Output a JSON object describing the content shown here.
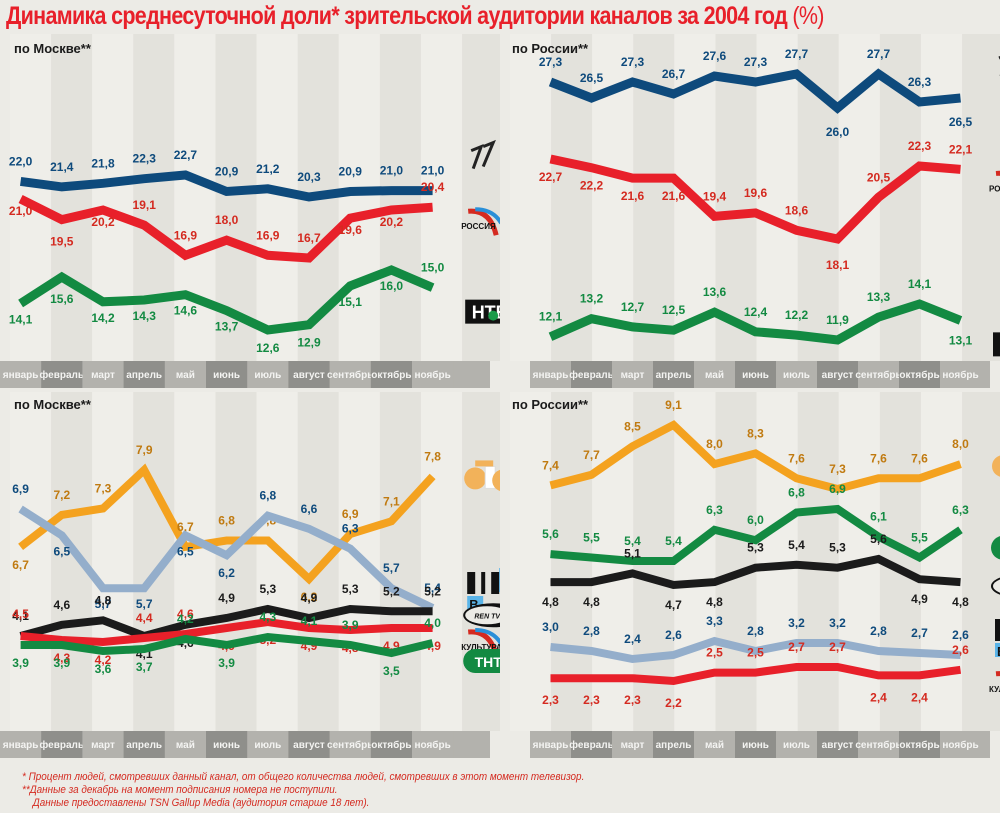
{
  "title": {
    "main": "Динамика среднесуточной доли* зрительской аудитории каналов за 2004 год",
    "unit": "(%)"
  },
  "colors": {
    "title": "#e8202a",
    "perviy": "#0e4a7c",
    "rossiya": "#e8202a",
    "ntv": "#138a42",
    "sts": "#f4a21f",
    "tvc": "#94aecb",
    "rentv": "#1b1b1b",
    "kultura": "#e8202a",
    "tnt": "#138a42",
    "axis_dark": "#8f8f8b",
    "axis_light": "#b3b2ad"
  },
  "months": [
    "январь",
    "февраль",
    "март",
    "апрель",
    "май",
    "июнь",
    "июль",
    "август",
    "сентябрь",
    "октябрь",
    "ноябрь"
  ],
  "footer": [
    "* Процент людей, смотревших данный канал, от общего количества людей, смотревших в этот момент телевизор.",
    "**Данные за декабрь на момент подписания номера не поступили.",
    "Данные предоставлены TSN Gallup Media (аудитория старше 18 лет)."
  ],
  "logos": {
    "rossiya": "РОССИЯ",
    "kultura": "КУЛЬТУРА",
    "ntv": "НТВ",
    "tnt": "ТНТ",
    "rentv": "REN TV",
    "tvc": "ТВЦ",
    "perviy": "1",
    "sts": "СТС"
  },
  "chart_data": [
    {
      "type": "line",
      "id": "moscow_major",
      "title": "по Москве**",
      "categories": [
        "январь",
        "февраль",
        "март",
        "апрель",
        "май",
        "июнь",
        "июль",
        "август",
        "сентябрь",
        "октябрь",
        "ноябрь"
      ],
      "series": [
        {
          "name": "Первый канал",
          "key": "perviy",
          "values": [
            22.0,
            21.4,
            21.8,
            22.3,
            22.7,
            20.9,
            21.2,
            20.3,
            20.9,
            21.0,
            21.0
          ]
        },
        {
          "name": "Россия",
          "key": "rossiya",
          "values": [
            21.0,
            19.5,
            20.2,
            19.1,
            16.9,
            18.0,
            16.9,
            16.7,
            19.6,
            20.2,
            20.4
          ]
        },
        {
          "name": "НТВ",
          "key": "ntv",
          "values": [
            14.1,
            15.6,
            14.2,
            14.3,
            14.6,
            13.7,
            12.6,
            12.9,
            15.1,
            16.0,
            15.0
          ]
        }
      ],
      "xlabel": "",
      "ylabel": "%"
    },
    {
      "type": "line",
      "id": "russia_major",
      "title": "по России**",
      "categories": [
        "январь",
        "февраль",
        "март",
        "апрель",
        "май",
        "июнь",
        "июль",
        "август",
        "сентябрь",
        "октябрь",
        "ноябрь"
      ],
      "series": [
        {
          "name": "Первый канал",
          "key": "perviy",
          "values": [
            27.3,
            26.5,
            27.3,
            26.7,
            27.6,
            27.3,
            27.7,
            26.0,
            27.7,
            26.3,
            26.5
          ]
        },
        {
          "name": "Россия",
          "key": "rossiya",
          "values": [
            22.7,
            22.2,
            21.6,
            21.6,
            19.4,
            19.6,
            18.6,
            18.1,
            20.5,
            22.3,
            22.1
          ]
        },
        {
          "name": "НТВ",
          "key": "ntv",
          "values": [
            12.1,
            13.2,
            12.7,
            12.5,
            13.6,
            12.4,
            12.2,
            11.9,
            13.3,
            14.1,
            13.1
          ]
        }
      ],
      "xlabel": "",
      "ylabel": "%"
    },
    {
      "type": "line",
      "id": "moscow_minor",
      "title": "по Москве**",
      "categories": [
        "январь",
        "февраль",
        "март",
        "апрель",
        "май",
        "июнь",
        "июль",
        "август",
        "сентябрь",
        "октябрь",
        "ноябрь"
      ],
      "series": [
        {
          "name": "СТС",
          "key": "sts",
          "values": [
            6.7,
            7.2,
            7.3,
            7.9,
            6.7,
            6.8,
            6.8,
            6.2,
            6.9,
            7.1,
            7.8
          ]
        },
        {
          "name": "ТВЦ",
          "key": "tvc",
          "values": [
            6.9,
            6.5,
            5.7,
            5.7,
            6.5,
            6.2,
            6.8,
            6.6,
            6.3,
            5.7,
            5.4
          ]
        },
        {
          "name": "REN TV",
          "key": "rentv",
          "values": [
            4.1,
            4.6,
            4.8,
            4.1,
            4.6,
            4.9,
            5.3,
            4.9,
            5.3,
            5.2,
            5.2
          ]
        },
        {
          "name": "Культура",
          "key": "kultura",
          "values": [
            4.5,
            4.3,
            4.2,
            4.4,
            4.6,
            4.9,
            5.2,
            4.9,
            4.8,
            4.9,
            4.9
          ]
        },
        {
          "name": "ТНТ",
          "key": "tnt",
          "values": [
            3.9,
            3.9,
            3.6,
            3.7,
            4.2,
            3.9,
            4.3,
            4.1,
            3.9,
            3.5,
            4.0
          ]
        }
      ],
      "xlabel": "",
      "ylabel": "%"
    },
    {
      "type": "line",
      "id": "russia_minor",
      "title": "по России**",
      "categories": [
        "январь",
        "февраль",
        "март",
        "апрель",
        "май",
        "июнь",
        "июль",
        "август",
        "сентябрь",
        "октябрь",
        "ноябрь"
      ],
      "series": [
        {
          "name": "СТС",
          "key": "sts",
          "values": [
            7.4,
            7.7,
            8.5,
            9.1,
            8.0,
            8.3,
            7.6,
            7.3,
            7.6,
            7.6,
            8.0
          ]
        },
        {
          "name": "ТНТ",
          "key": "tnt",
          "values": [
            5.6,
            5.5,
            5.4,
            5.4,
            6.3,
            6.0,
            6.8,
            6.9,
            6.1,
            5.5,
            6.3
          ]
        },
        {
          "name": "REN TV",
          "key": "rentv",
          "values": [
            4.8,
            4.8,
            5.1,
            4.7,
            4.8,
            5.3,
            5.4,
            5.3,
            5.6,
            4.9,
            4.8
          ]
        },
        {
          "name": "ТВЦ",
          "key": "tvc",
          "values": [
            3.0,
            2.8,
            2.4,
            2.6,
            3.3,
            2.8,
            3.2,
            3.2,
            2.8,
            2.7,
            2.6
          ]
        },
        {
          "name": "Культура",
          "key": "kultura",
          "values": [
            2.3,
            2.3,
            2.3,
            2.2,
            2.5,
            2.5,
            2.7,
            2.7,
            2.4,
            2.4,
            2.6
          ]
        }
      ],
      "xlabel": "",
      "ylabel": "%"
    }
  ]
}
